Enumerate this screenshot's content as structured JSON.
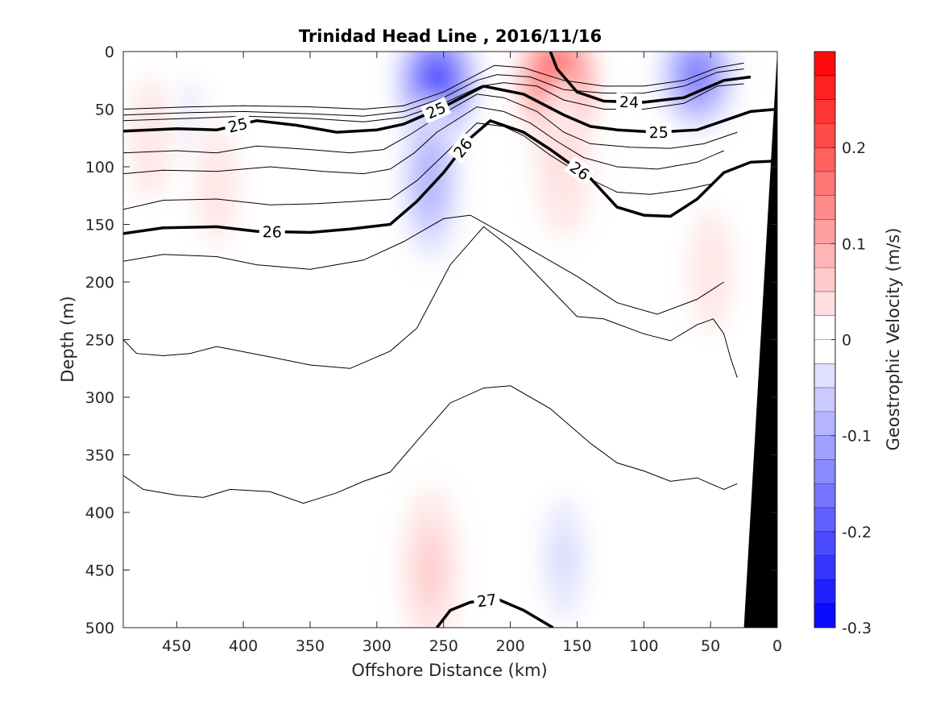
{
  "chart_data": {
    "type": "heatmap",
    "title": "Trinidad Head Line , 2016/11/16",
    "xlabel": "Offshore Distance (km)",
    "ylabel": "Depth (m)",
    "colorbar_label": "Geostrophic Velocity (m/s)",
    "xlim": [
      490,
      0
    ],
    "ylim": [
      0,
      500
    ],
    "x_reversed": true,
    "y_reversed": true,
    "x_ticks": [
      450,
      400,
      350,
      300,
      250,
      200,
      150,
      100,
      50,
      0
    ],
    "y_ticks": [
      0,
      50,
      100,
      150,
      200,
      250,
      300,
      350,
      400,
      450,
      500
    ],
    "colorbar_limits": [
      -0.3,
      0.3
    ],
    "colorbar_ticks": [
      0.2,
      0.1,
      0,
      -0.1,
      -0.2,
      -0.3
    ],
    "colormap": "blue-white-red",
    "color_positive": "#ff0000",
    "color_negative": "#0000ff",
    "color_zero": "#ffffff",
    "velocity_cores": [
      {
        "x": 255,
        "depth": 25,
        "v": -0.24
      },
      {
        "x": 260,
        "depth": 110,
        "v": -0.1
      },
      {
        "x": 165,
        "depth": 25,
        "v": 0.22
      },
      {
        "x": 160,
        "depth": 90,
        "v": 0.06
      },
      {
        "x": 60,
        "depth": 20,
        "v": -0.17
      },
      {
        "x": 260,
        "depth": 450,
        "v": 0.07
      },
      {
        "x": 160,
        "depth": 440,
        "v": -0.06
      },
      {
        "x": 50,
        "depth": 190,
        "v": 0.04
      },
      {
        "x": 440,
        "depth": 60,
        "v": -0.03
      },
      {
        "x": 420,
        "depth": 115,
        "v": 0.03
      },
      {
        "x": 470,
        "depth": 75,
        "v": 0.03
      }
    ],
    "bold_isopycnals": [
      {
        "label": "24",
        "points": [
          [
            170,
            0
          ],
          [
            165,
            15
          ],
          [
            150,
            35
          ],
          [
            130,
            43
          ],
          [
            100,
            44
          ],
          [
            70,
            40
          ],
          [
            40,
            25
          ],
          [
            20,
            22
          ]
        ]
      },
      {
        "label": "25",
        "points": [
          [
            490,
            69
          ],
          [
            450,
            67
          ],
          [
            420,
            68
          ],
          [
            390,
            60
          ],
          [
            360,
            64
          ],
          [
            330,
            70
          ],
          [
            300,
            68
          ],
          [
            280,
            63
          ],
          [
            250,
            48
          ],
          [
            220,
            30
          ],
          [
            190,
            37
          ],
          [
            160,
            55
          ],
          [
            140,
            65
          ],
          [
            120,
            68
          ],
          [
            90,
            70
          ],
          [
            60,
            68
          ],
          [
            40,
            60
          ],
          [
            20,
            52
          ],
          [
            0,
            50
          ]
        ]
      },
      {
        "label": "26",
        "points": [
          [
            490,
            158
          ],
          [
            460,
            153
          ],
          [
            420,
            152
          ],
          [
            390,
            156
          ],
          [
            350,
            157
          ],
          [
            320,
            154
          ],
          [
            290,
            150
          ],
          [
            270,
            130
          ],
          [
            250,
            105
          ],
          [
            230,
            75
          ],
          [
            215,
            60
          ],
          [
            190,
            70
          ],
          [
            170,
            85
          ],
          [
            140,
            110
          ],
          [
            120,
            135
          ],
          [
            100,
            142
          ],
          [
            80,
            143
          ],
          [
            60,
            128
          ],
          [
            40,
            105
          ],
          [
            20,
            96
          ],
          [
            0,
            95
          ]
        ]
      },
      {
        "label": "27",
        "points": [
          [
            255,
            500
          ],
          [
            245,
            485
          ],
          [
            230,
            478
          ],
          [
            210,
            475
          ],
          [
            190,
            485
          ],
          [
            168,
            500
          ]
        ]
      }
    ],
    "thin_isopycnals": [
      {
        "points": [
          [
            490,
            50
          ],
          [
            440,
            48
          ],
          [
            400,
            47
          ],
          [
            350,
            48
          ],
          [
            310,
            50
          ],
          [
            280,
            47
          ],
          [
            250,
            35
          ],
          [
            225,
            20
          ],
          [
            212,
            12
          ],
          [
            190,
            14
          ],
          [
            160,
            25
          ],
          [
            130,
            30
          ],
          [
            100,
            30
          ],
          [
            70,
            25
          ],
          [
            45,
            14
          ],
          [
            25,
            10
          ]
        ]
      },
      {
        "points": [
          [
            490,
            55
          ],
          [
            440,
            53
          ],
          [
            400,
            52
          ],
          [
            350,
            54
          ],
          [
            310,
            56
          ],
          [
            280,
            52
          ],
          [
            250,
            40
          ],
          [
            225,
            25
          ],
          [
            210,
            20
          ],
          [
            185,
            22
          ],
          [
            160,
            33
          ],
          [
            130,
            36
          ],
          [
            100,
            36
          ],
          [
            70,
            30
          ],
          [
            45,
            18
          ],
          [
            25,
            15
          ]
        ]
      },
      {
        "points": [
          [
            490,
            60
          ],
          [
            440,
            58
          ],
          [
            400,
            56
          ],
          [
            350,
            58
          ],
          [
            310,
            61
          ],
          [
            280,
            57
          ],
          [
            250,
            45
          ],
          [
            222,
            30
          ],
          [
            205,
            27
          ],
          [
            180,
            30
          ],
          [
            160,
            42
          ],
          [
            130,
            50
          ],
          [
            100,
            50
          ],
          [
            70,
            45
          ],
          [
            45,
            30
          ],
          [
            25,
            28
          ]
        ]
      },
      {
        "points": [
          [
            490,
            88
          ],
          [
            450,
            86
          ],
          [
            420,
            88
          ],
          [
            390,
            82
          ],
          [
            350,
            85
          ],
          [
            320,
            88
          ],
          [
            295,
            85
          ],
          [
            275,
            72
          ],
          [
            255,
            57
          ],
          [
            225,
            37
          ],
          [
            205,
            40
          ],
          [
            180,
            52
          ],
          [
            160,
            70
          ],
          [
            140,
            80
          ],
          [
            110,
            83
          ],
          [
            80,
            84
          ],
          [
            55,
            80
          ],
          [
            30,
            70
          ]
        ]
      },
      {
        "points": [
          [
            490,
            106
          ],
          [
            460,
            103
          ],
          [
            420,
            104
          ],
          [
            380,
            100
          ],
          [
            340,
            104
          ],
          [
            310,
            106
          ],
          [
            290,
            102
          ],
          [
            272,
            88
          ],
          [
            255,
            70
          ],
          [
            225,
            48
          ],
          [
            205,
            52
          ],
          [
            185,
            62
          ],
          [
            165,
            78
          ],
          [
            145,
            92
          ],
          [
            120,
            100
          ],
          [
            90,
            102
          ],
          [
            60,
            96
          ],
          [
            40,
            86
          ]
        ]
      },
      {
        "points": [
          [
            490,
            137
          ],
          [
            460,
            129
          ],
          [
            420,
            128
          ],
          [
            380,
            133
          ],
          [
            345,
            132
          ],
          [
            315,
            130
          ],
          [
            290,
            128
          ],
          [
            270,
            112
          ],
          [
            252,
            92
          ],
          [
            225,
            62
          ],
          [
            205,
            65
          ],
          [
            190,
            73
          ],
          [
            170,
            90
          ],
          [
            145,
            108
          ],
          [
            120,
            122
          ],
          [
            95,
            124
          ],
          [
            70,
            120
          ],
          [
            50,
            115
          ]
        ]
      },
      {
        "points": [
          [
            490,
            182
          ],
          [
            460,
            176
          ],
          [
            420,
            178
          ],
          [
            390,
            185
          ],
          [
            350,
            189
          ],
          [
            310,
            181
          ],
          [
            280,
            165
          ],
          [
            250,
            145
          ],
          [
            230,
            142
          ],
          [
            210,
            155
          ],
          [
            180,
            175
          ],
          [
            150,
            195
          ],
          [
            120,
            218
          ],
          [
            90,
            228
          ],
          [
            60,
            215
          ],
          [
            40,
            200
          ]
        ]
      },
      {
        "points": [
          [
            490,
            250
          ],
          [
            480,
            262
          ],
          [
            460,
            264
          ],
          [
            440,
            262
          ],
          [
            420,
            256
          ],
          [
            380,
            265
          ],
          [
            350,
            272
          ],
          [
            320,
            275
          ],
          [
            290,
            260
          ],
          [
            270,
            240
          ],
          [
            245,
            185
          ],
          [
            220,
            152
          ],
          [
            200,
            170
          ],
          [
            175,
            200
          ],
          [
            150,
            230
          ],
          [
            130,
            232
          ],
          [
            100,
            245
          ],
          [
            80,
            251
          ],
          [
            60,
            237
          ],
          [
            48,
            232
          ],
          [
            40,
            245
          ],
          [
            35,
            266
          ],
          [
            30,
            283
          ]
        ]
      },
      {
        "points": [
          [
            490,
            368
          ],
          [
            475,
            380
          ],
          [
            450,
            385
          ],
          [
            430,
            387
          ],
          [
            410,
            380
          ],
          [
            380,
            382
          ],
          [
            355,
            392
          ],
          [
            330,
            383
          ],
          [
            310,
            373
          ],
          [
            290,
            365
          ],
          [
            270,
            338
          ],
          [
            245,
            305
          ],
          [
            220,
            292
          ],
          [
            200,
            290
          ],
          [
            170,
            310
          ],
          [
            140,
            340
          ],
          [
            120,
            357
          ],
          [
            100,
            364
          ],
          [
            80,
            373
          ],
          [
            60,
            370
          ],
          [
            50,
            375
          ],
          [
            40,
            380
          ],
          [
            30,
            375
          ]
        ]
      }
    ],
    "coast_polygon": [
      [
        0,
        0
      ],
      [
        25,
        500
      ],
      [
        0,
        500
      ]
    ]
  }
}
